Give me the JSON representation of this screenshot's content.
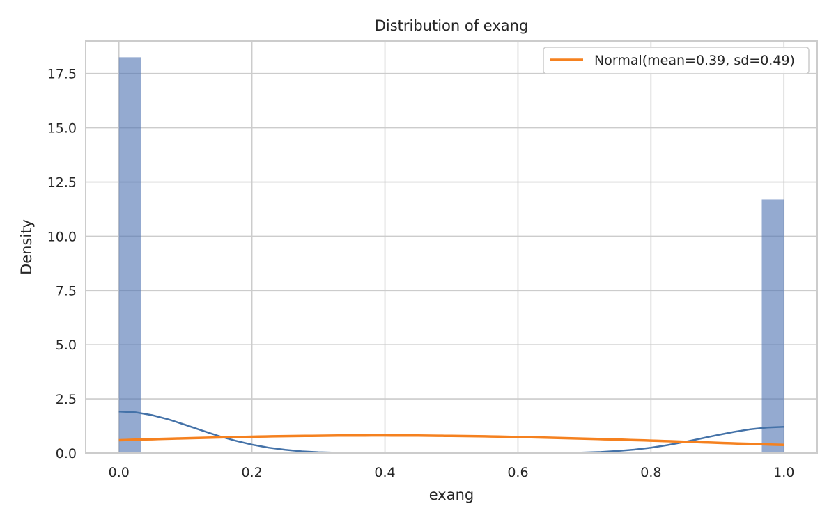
{
  "chart_data": {
    "type": "bar",
    "title": "Distribution of exang",
    "xlabel": "exang",
    "ylabel": "Density",
    "xlim": [
      -0.05,
      1.05
    ],
    "ylim": [
      0,
      19.0
    ],
    "xticks": [
      0.0,
      0.2,
      0.4,
      0.6,
      0.8,
      1.0
    ],
    "xtick_labels": [
      "0.0",
      "0.2",
      "0.4",
      "0.6",
      "0.8",
      "1.0"
    ],
    "yticks": [
      0.0,
      2.5,
      5.0,
      7.5,
      10.0,
      12.5,
      15.0,
      17.5
    ],
    "ytick_labels": [
      "0.0",
      "2.5",
      "5.0",
      "7.5",
      "10.0",
      "12.5",
      "15.0",
      "17.5"
    ],
    "grid": true,
    "legend_placement": "top-right",
    "histogram": {
      "bin_width": 0.0333,
      "bars": [
        {
          "x0": 0.0,
          "x1": 0.0333,
          "value": 18.25
        },
        {
          "x0": 0.9667,
          "x1": 1.0,
          "value": 11.7
        }
      ],
      "color": "#4c72b0"
    },
    "kde": {
      "x": [
        0.0,
        0.025,
        0.05,
        0.075,
        0.1,
        0.125,
        0.15,
        0.175,
        0.2,
        0.225,
        0.25,
        0.275,
        0.3,
        0.325,
        0.35,
        0.375,
        0.4,
        0.425,
        0.45,
        0.475,
        0.5,
        0.525,
        0.55,
        0.575,
        0.6,
        0.625,
        0.65,
        0.675,
        0.7,
        0.725,
        0.75,
        0.775,
        0.8,
        0.825,
        0.85,
        0.875,
        0.9,
        0.925,
        0.95,
        0.975,
        1.0
      ],
      "y": [
        1.92,
        1.88,
        1.75,
        1.55,
        1.3,
        1.04,
        0.79,
        0.57,
        0.39,
        0.25,
        0.15,
        0.08,
        0.04,
        0.02,
        0.01,
        0.0,
        0.0,
        0.0,
        0.0,
        0.0,
        0.0,
        0.0,
        0.0,
        0.0,
        0.0,
        0.0,
        0.0,
        0.01,
        0.03,
        0.05,
        0.1,
        0.16,
        0.25,
        0.37,
        0.51,
        0.67,
        0.83,
        0.98,
        1.1,
        1.18,
        1.21
      ],
      "color": "#4472a8"
    },
    "series": [
      {
        "name": "Normal(mean=0.39, sd=0.49)",
        "mean": 0.39,
        "sd": 0.49,
        "color": "#f5811f"
      }
    ]
  }
}
